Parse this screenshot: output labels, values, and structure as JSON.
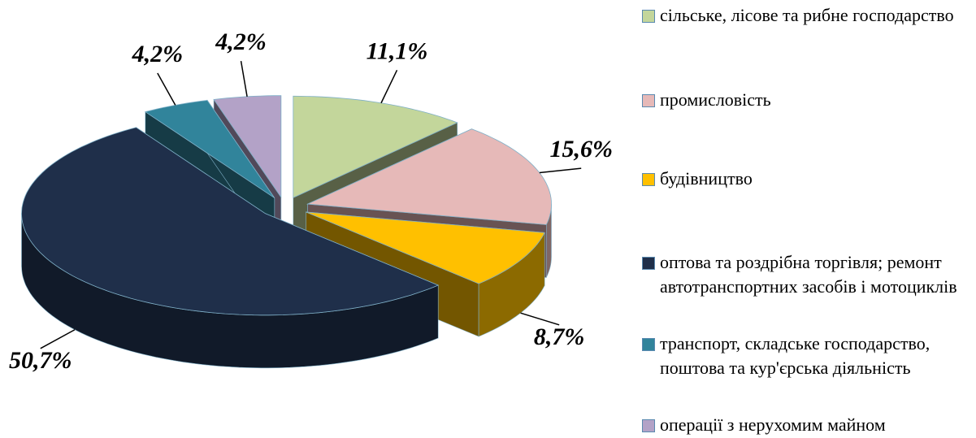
{
  "chart_data": {
    "type": "pie3d",
    "categories": [
      "сільське, лісове та рибне господарство",
      "промисловість",
      "будівництво",
      "оптова та роздрібна торгівля; ремонт автотранспортних засобів і мотоциклів",
      "транспорт, складське господарство, поштова та кур'єрська діяльність",
      "операції з нерухомим майном"
    ],
    "values": [
      11.1,
      15.6,
      8.7,
      50.7,
      4.2,
      4.2
    ],
    "value_labels": [
      "11,1%",
      "15,6%",
      "8,7%",
      "50,7%",
      "4,2%",
      "4,2%"
    ],
    "colors": [
      "#c3d69b",
      "#e6b9b8",
      "#ffc000",
      "#1f2f4a",
      "#31849b",
      "#b3a2c7"
    ],
    "legend": "right"
  }
}
